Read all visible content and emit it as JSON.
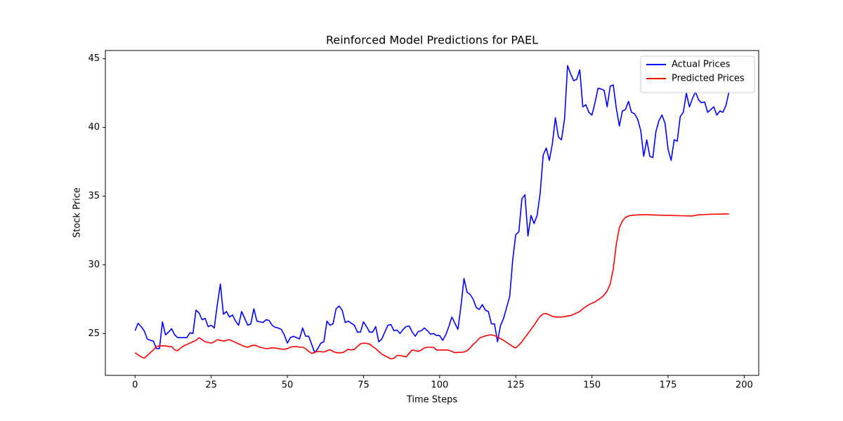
{
  "chart_data": {
    "type": "line",
    "title": "Reinforced Model Predictions for PAEL",
    "x_label": "Time Steps",
    "y_label": "Stock Price",
    "x": [
      0,
      1,
      2,
      3,
      4,
      5,
      6,
      7,
      8,
      9,
      10,
      11,
      12,
      13,
      14,
      15,
      16,
      17,
      18,
      19,
      20,
      21,
      22,
      23,
      24,
      25,
      26,
      27,
      28,
      29,
      30,
      31,
      32,
      33,
      34,
      35,
      36,
      37,
      38,
      39,
      40,
      41,
      42,
      43,
      44,
      45,
      46,
      47,
      48,
      49,
      50,
      51,
      52,
      53,
      54,
      55,
      56,
      57,
      58,
      59,
      60,
      61,
      62,
      63,
      64,
      65,
      66,
      67,
      68,
      69,
      70,
      71,
      72,
      73,
      74,
      75,
      76,
      77,
      78,
      79,
      80,
      81,
      82,
      83,
      84,
      85,
      86,
      87,
      88,
      89,
      90,
      91,
      92,
      93,
      94,
      95,
      96,
      97,
      98,
      99,
      100,
      101,
      102,
      103,
      104,
      105,
      106,
      107,
      108,
      109,
      110,
      111,
      112,
      113,
      114,
      115,
      116,
      117,
      118,
      119,
      120,
      121,
      122,
      123,
      124,
      125,
      126,
      127,
      128,
      129,
      130,
      131,
      132,
      133,
      134,
      135,
      136,
      137,
      138,
      139,
      140,
      141,
      142,
      143,
      144,
      145,
      146,
      147,
      148,
      149,
      150,
      151,
      152,
      153,
      154,
      155,
      156,
      157,
      158,
      159,
      160,
      161,
      162,
      163,
      164,
      165,
      166,
      167,
      168,
      169,
      170,
      171,
      172,
      173,
      174,
      175,
      176,
      177,
      178,
      179,
      180,
      181,
      182,
      183,
      184,
      185,
      186,
      187,
      188,
      189,
      190,
      191,
      192,
      193,
      194,
      195
    ],
    "series": [
      {
        "name": "Actual Prices",
        "color": "#0000ff",
        "values": [
          25.2,
          25.75,
          25.5,
          25.2,
          24.6,
          24.5,
          24.45,
          23.9,
          23.9,
          25.85,
          24.9,
          25.1,
          25.35,
          24.9,
          24.7,
          24.7,
          24.7,
          24.7,
          25.05,
          25.0,
          26.7,
          26.5,
          26.0,
          26.1,
          25.5,
          25.6,
          25.4,
          27.1,
          28.6,
          26.4,
          26.6,
          26.2,
          26.35,
          25.9,
          25.6,
          26.6,
          26.1,
          25.6,
          25.7,
          26.8,
          25.9,
          25.85,
          25.8,
          26.0,
          25.95,
          25.6,
          25.45,
          25.4,
          25.3,
          24.9,
          24.3,
          24.7,
          24.8,
          24.7,
          24.6,
          25.4,
          24.8,
          24.8,
          24.2,
          23.6,
          23.9,
          24.3,
          24.4,
          25.9,
          25.6,
          25.7,
          26.8,
          27.0,
          26.7,
          25.8,
          25.9,
          25.75,
          25.6,
          25.1,
          25.1,
          25.85,
          25.5,
          25.1,
          25.1,
          25.5,
          24.4,
          24.6,
          25.1,
          25.6,
          25.65,
          25.2,
          25.25,
          25.0,
          25.3,
          25.5,
          25.55,
          25.1,
          24.8,
          25.15,
          25.2,
          25.4,
          25.2,
          24.95,
          25.0,
          24.85,
          24.85,
          24.5,
          24.9,
          25.5,
          26.2,
          25.75,
          25.3,
          27.0,
          29.0,
          28.0,
          27.85,
          27.5,
          26.9,
          26.75,
          27.1,
          26.7,
          26.6,
          25.7,
          25.7,
          24.4,
          25.6,
          26.1,
          26.9,
          27.7,
          30.4,
          32.2,
          32.4,
          34.8,
          35.1,
          32.1,
          33.6,
          33.0,
          33.6,
          35.2,
          38.0,
          38.5,
          37.6,
          38.8,
          40.7,
          39.3,
          39.1,
          40.6,
          44.5,
          43.9,
          43.4,
          43.5,
          44.2,
          41.5,
          41.65,
          41.1,
          40.9,
          41.8,
          42.85,
          42.8,
          42.7,
          41.5,
          43.0,
          43.1,
          41.4,
          40.1,
          41.2,
          41.3,
          41.9,
          41.1,
          41.0,
          40.6,
          39.8,
          37.9,
          39.1,
          37.9,
          37.8,
          39.7,
          40.5,
          40.9,
          40.3,
          38.4,
          37.6,
          39.1,
          39.0,
          40.8,
          41.1,
          42.5,
          41.5,
          42.1,
          42.6,
          42.0,
          41.8,
          41.85,
          41.1,
          41.3,
          41.5,
          40.9,
          41.2,
          41.1,
          41.6,
          42.6
        ]
      },
      {
        "name": "Predicted Prices",
        "color": "#ff0000",
        "values": [
          23.6,
          23.45,
          23.3,
          23.2,
          23.4,
          23.6,
          23.8,
          24.05,
          24.1,
          24.1,
          24.1,
          24.05,
          24.05,
          23.8,
          23.75,
          23.95,
          24.1,
          24.2,
          24.3,
          24.4,
          24.5,
          24.7,
          24.55,
          24.4,
          24.35,
          24.3,
          24.4,
          24.55,
          24.5,
          24.45,
          24.5,
          24.55,
          24.45,
          24.35,
          24.25,
          24.15,
          24.05,
          24.0,
          24.1,
          24.15,
          24.1,
          24.0,
          23.95,
          23.9,
          23.92,
          23.95,
          23.95,
          23.9,
          23.87,
          23.85,
          23.9,
          24.0,
          24.05,
          24.05,
          24.0,
          24.0,
          23.9,
          23.7,
          23.55,
          23.62,
          23.7,
          23.68,
          23.65,
          23.75,
          23.82,
          23.7,
          23.6,
          23.6,
          23.6,
          23.7,
          23.85,
          23.8,
          23.85,
          24.05,
          24.25,
          24.3,
          24.28,
          24.22,
          24.05,
          23.9,
          23.7,
          23.5,
          23.38,
          23.27,
          23.15,
          23.2,
          23.4,
          23.4,
          23.35,
          23.3,
          23.55,
          23.8,
          23.75,
          23.7,
          23.8,
          23.95,
          24.0,
          24.0,
          24.0,
          23.8,
          23.8,
          23.8,
          23.8,
          23.78,
          23.7,
          23.6,
          23.62,
          23.63,
          23.65,
          23.75,
          23.95,
          24.2,
          24.4,
          24.65,
          24.75,
          24.82,
          24.88,
          24.9,
          24.85,
          24.75,
          24.62,
          24.5,
          24.35,
          24.2,
          24.05,
          23.95,
          24.15,
          24.4,
          24.7,
          25.0,
          25.3,
          25.6,
          25.95,
          26.25,
          26.42,
          26.45,
          26.35,
          26.25,
          26.2,
          26.2,
          26.2,
          26.23,
          26.27,
          26.3,
          26.4,
          26.5,
          26.6,
          26.8,
          26.95,
          27.1,
          27.2,
          27.3,
          27.45,
          27.6,
          27.8,
          28.1,
          28.6,
          29.7,
          31.5,
          32.7,
          33.2,
          33.45,
          33.55,
          33.6,
          33.62,
          33.63,
          33.64,
          33.65,
          33.65,
          33.64,
          33.63,
          33.62,
          33.62,
          33.61,
          33.6,
          33.6,
          33.6,
          33.59,
          33.58,
          33.57,
          33.57,
          33.56,
          33.56,
          33.55,
          33.6,
          33.64,
          33.65,
          33.66,
          33.67,
          33.68,
          33.68,
          33.69,
          33.69,
          33.7,
          33.7,
          33.7
        ]
      }
    ],
    "xlim": [
      -9.75,
      204.75
    ],
    "xticks": [
      0,
      25,
      50,
      75,
      100,
      125,
      150,
      175,
      200
    ],
    "ylim": [
      21.95,
      45.6
    ],
    "yticks": [
      25,
      30,
      35,
      40,
      45
    ],
    "legend": "upper right",
    "grid": false
  }
}
